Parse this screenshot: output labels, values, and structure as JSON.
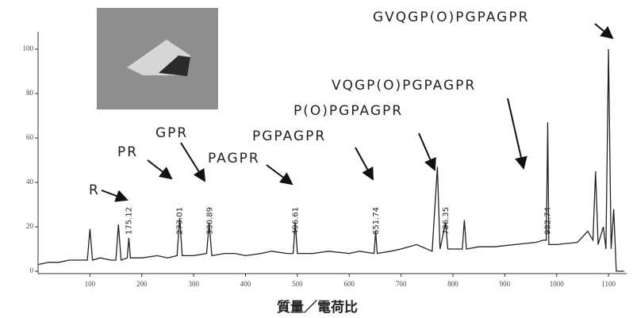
{
  "chart_data": {
    "type": "line",
    "x": [
      0,
      20,
      40,
      60,
      80,
      95,
      100,
      105,
      120,
      140,
      150,
      155,
      160,
      172,
      175,
      178,
      190,
      200,
      230,
      250,
      268,
      273,
      278,
      300,
      325,
      330,
      335,
      360,
      380,
      400,
      430,
      450,
      480,
      492,
      496,
      500,
      530,
      560,
      600,
      620,
      648,
      651,
      654,
      680,
      700,
      730,
      760,
      770,
      775,
      786,
      790,
      800,
      818,
      822,
      826,
      850,
      880,
      920,
      960,
      975,
      980,
      982.74,
      985,
      1000,
      1040,
      1060,
      1070,
      1075,
      1080,
      1090,
      1095,
      1100,
      1105,
      1110,
      1115,
      1130
    ],
    "series": [
      {
        "color": "#222222",
        "values": [
          3,
          4,
          4,
          5,
          5,
          5,
          19,
          5,
          6,
          5,
          5,
          21,
          5,
          6,
          15,
          6,
          6,
          6,
          7,
          6,
          7,
          24,
          7,
          7,
          8,
          22,
          7,
          8,
          8,
          7,
          8,
          9,
          8,
          8,
          22,
          8,
          8,
          9,
          8,
          9,
          8,
          18,
          8,
          9,
          10,
          12,
          9,
          47,
          10,
          22,
          10,
          10,
          10,
          23,
          10,
          11,
          11,
          12,
          13,
          14,
          14,
          67,
          12,
          12,
          13,
          18,
          14,
          45,
          12,
          20,
          10,
          100,
          10,
          28,
          0,
          0
        ]
      }
    ],
    "xlim": [
      0,
      1135
    ],
    "ylim": [
      0,
      105
    ],
    "xticks": [
      100,
      200,
      300,
      400,
      500,
      600,
      700,
      800,
      900,
      1000,
      1100
    ],
    "yticks": [
      0,
      20,
      40,
      60,
      80,
      100
    ],
    "xlabel": "質量／電荷比",
    "peak_labels": [
      175.12,
      273.01,
      330.89,
      496.61,
      651.74,
      786.35,
      982.74
    ],
    "fragments": [
      "R",
      "PR",
      "GPR",
      "PAGPR",
      "PGPAGPR",
      "P(O)PGPAGPR",
      "VQGP(O)PGPAGPR",
      "GVQGP(O)PGPAGPR"
    ]
  }
}
